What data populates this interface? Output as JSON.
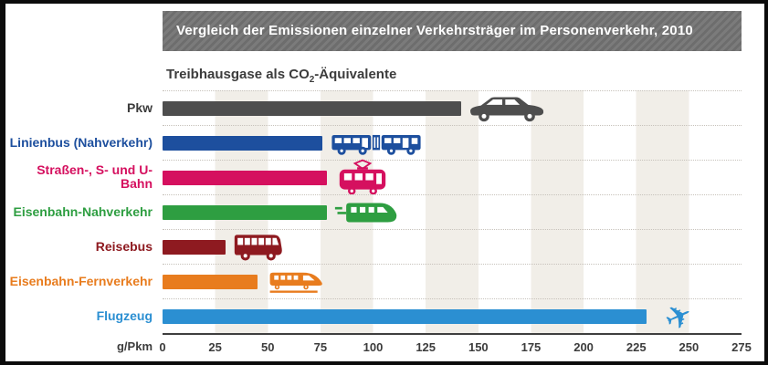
{
  "title": "Vergleich der Emissionen einzelner Verkehrsträger im Personenverkehr, 2010",
  "subtitle": {
    "prefix": "Treibhausgase als CO",
    "sub": "2",
    "suffix": "-Äquivalente"
  },
  "axis": {
    "unit_label": "g/Pkm",
    "ticks": [
      "0",
      "25",
      "50",
      "75",
      "100",
      "125",
      "150",
      "175",
      "200",
      "225",
      "250",
      "275"
    ],
    "max": 275
  },
  "chart_data": {
    "type": "bar",
    "orientation": "horizontal",
    "title": "Vergleich der Emissionen einzelner Verkehrsträger im Personenverkehr, 2010",
    "subtitle": "Treibhausgase als CO2-Äquivalente",
    "xlabel": "g/Pkm",
    "ylabel": "",
    "xlim": [
      0,
      275
    ],
    "grid": "vertical bands every 25 units",
    "legend": "none",
    "unit": "g/Pkm",
    "categories": [
      "Pkw",
      "Linienbus (Nahverkehr)",
      "Straßen-, S- und U-Bahn",
      "Eisenbahn-Nahverkehr",
      "Reisebus",
      "Eisenbahn-Fernverkehr",
      "Flugzeug"
    ],
    "values": [
      142,
      76,
      78,
      78,
      30,
      45,
      230
    ],
    "rows": [
      {
        "label": "Pkw",
        "value": 142,
        "color": "#4e4e4e",
        "label_color": "#3c3c3c",
        "icon": "car-icon"
      },
      {
        "label": "Linienbus (Nahverkehr)",
        "value": 76,
        "color": "#1d4f9e",
        "label_color": "#1d4f9e",
        "icon": "city-bus-icon"
      },
      {
        "label": "Straßen-, S- und U-Bahn",
        "value": 78,
        "color": "#d5105f",
        "label_color": "#d5105f",
        "icon": "tram-icon"
      },
      {
        "label": "Eisenbahn-Nahverkehr",
        "value": 78,
        "color": "#2e9e41",
        "label_color": "#2e9e41",
        "icon": "regional-train-icon"
      },
      {
        "label": "Reisebus",
        "value": 30,
        "color": "#8e1a20",
        "label_color": "#8e1a20",
        "icon": "coach-bus-icon"
      },
      {
        "label": "Eisenbahn-Fernverkehr",
        "value": 45,
        "color": "#e87c1e",
        "label_color": "#e87c1e",
        "icon": "express-train-icon"
      },
      {
        "label": "Flugzeug",
        "value": 230,
        "color": "#2b8fd2",
        "label_color": "#2b8fd2",
        "icon": "airplane-icon"
      }
    ]
  },
  "colors": {
    "title_bar_bg": "#757575",
    "title_text": "#ffffff",
    "stripe_band": "#f1eee8",
    "axis_line": "#3f3f3f",
    "frame_border": "#0c0c0c"
  }
}
